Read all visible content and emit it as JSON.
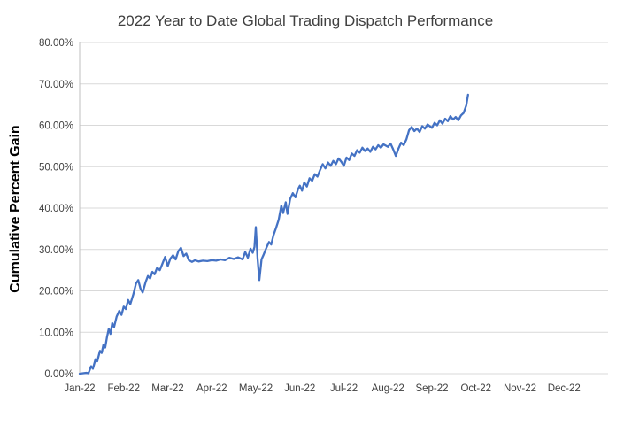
{
  "chart_data": {
    "type": "line",
    "title": "2022 Year to Date Global Trading Dispatch Performance",
    "xlabel": "",
    "ylabel": "Cumulative Percent Gain",
    "xlim": [
      0,
      12
    ],
    "ylim": [
      0,
      80
    ],
    "grid": "horizontal-only",
    "legend": "none",
    "x_tick_labels": [
      "Jan-22",
      "Feb-22",
      "Mar-22",
      "Apr-22",
      "May-22",
      "Jun-22",
      "Jul-22",
      "Aug-22",
      "Sep-22",
      "Oct-22",
      "Nov-22",
      "Dec-22"
    ],
    "y_ticks": [
      0,
      10,
      20,
      30,
      40,
      50,
      60,
      70,
      80
    ],
    "y_tick_labels": [
      "0.00%",
      "10.00%",
      "20.00%",
      "30.00%",
      "40.00%",
      "50.00%",
      "60.00%",
      "70.00%",
      "80.00%"
    ],
    "colors": {
      "line": "#4472C4",
      "grid": "#D9D9D9",
      "axis": "#BFBFBF",
      "title": "#404040",
      "tick": "#404040"
    },
    "series": [
      {
        "name": "Cumulative Percent Gain",
        "x_unit": "months-since-Jan-1-2022",
        "y_unit": "percent",
        "points": [
          [
            0.0,
            0.0
          ],
          [
            0.15,
            0.2
          ],
          [
            0.2,
            0.1
          ],
          [
            0.26,
            1.8
          ],
          [
            0.3,
            1.2
          ],
          [
            0.36,
            3.5
          ],
          [
            0.4,
            3.0
          ],
          [
            0.46,
            5.5
          ],
          [
            0.5,
            5.0
          ],
          [
            0.54,
            7.0
          ],
          [
            0.58,
            6.3
          ],
          [
            0.62,
            8.8
          ],
          [
            0.66,
            10.8
          ],
          [
            0.7,
            9.6
          ],
          [
            0.74,
            12.2
          ],
          [
            0.78,
            11.2
          ],
          [
            0.84,
            13.8
          ],
          [
            0.9,
            15.2
          ],
          [
            0.95,
            14.2
          ],
          [
            1.0,
            16.2
          ],
          [
            1.05,
            15.6
          ],
          [
            1.1,
            17.8
          ],
          [
            1.15,
            16.8
          ],
          [
            1.22,
            19.2
          ],
          [
            1.28,
            21.8
          ],
          [
            1.33,
            22.6
          ],
          [
            1.38,
            20.6
          ],
          [
            1.43,
            19.6
          ],
          [
            1.5,
            22.2
          ],
          [
            1.55,
            23.6
          ],
          [
            1.6,
            23.0
          ],
          [
            1.65,
            24.6
          ],
          [
            1.7,
            24.0
          ],
          [
            1.76,
            25.6
          ],
          [
            1.82,
            25.0
          ],
          [
            1.88,
            26.6
          ],
          [
            1.94,
            28.2
          ],
          [
            2.0,
            26.0
          ],
          [
            2.06,
            27.8
          ],
          [
            2.12,
            28.6
          ],
          [
            2.18,
            27.6
          ],
          [
            2.24,
            29.6
          ],
          [
            2.3,
            30.4
          ],
          [
            2.36,
            28.4
          ],
          [
            2.42,
            29.0
          ],
          [
            2.48,
            27.4
          ],
          [
            2.55,
            27.0
          ],
          [
            2.62,
            27.4
          ],
          [
            2.7,
            27.1
          ],
          [
            2.8,
            27.3
          ],
          [
            2.9,
            27.2
          ],
          [
            3.0,
            27.4
          ],
          [
            3.1,
            27.3
          ],
          [
            3.2,
            27.6
          ],
          [
            3.3,
            27.4
          ],
          [
            3.4,
            28.0
          ],
          [
            3.5,
            27.7
          ],
          [
            3.6,
            28.1
          ],
          [
            3.7,
            27.6
          ],
          [
            3.76,
            29.4
          ],
          [
            3.82,
            28.0
          ],
          [
            3.88,
            30.2
          ],
          [
            3.93,
            29.2
          ],
          [
            3.97,
            30.6
          ],
          [
            4.0,
            35.4
          ],
          [
            4.04,
            27.8
          ],
          [
            4.08,
            22.6
          ],
          [
            4.13,
            27.6
          ],
          [
            4.18,
            28.8
          ],
          [
            4.24,
            30.4
          ],
          [
            4.3,
            31.8
          ],
          [
            4.35,
            31.2
          ],
          [
            4.4,
            33.4
          ],
          [
            4.46,
            35.2
          ],
          [
            4.52,
            37.2
          ],
          [
            4.58,
            40.6
          ],
          [
            4.62,
            38.8
          ],
          [
            4.68,
            41.4
          ],
          [
            4.72,
            38.6
          ],
          [
            4.78,
            42.2
          ],
          [
            4.84,
            43.6
          ],
          [
            4.9,
            42.6
          ],
          [
            4.96,
            44.6
          ],
          [
            5.0,
            45.4
          ],
          [
            5.05,
            44.2
          ],
          [
            5.1,
            46.2
          ],
          [
            5.16,
            45.2
          ],
          [
            5.22,
            47.2
          ],
          [
            5.28,
            46.6
          ],
          [
            5.34,
            48.2
          ],
          [
            5.4,
            47.6
          ],
          [
            5.46,
            49.2
          ],
          [
            5.52,
            50.6
          ],
          [
            5.58,
            49.6
          ],
          [
            5.64,
            51.0
          ],
          [
            5.7,
            50.2
          ],
          [
            5.76,
            51.4
          ],
          [
            5.82,
            50.6
          ],
          [
            5.88,
            52.0
          ],
          [
            5.94,
            51.2
          ],
          [
            6.0,
            50.2
          ],
          [
            6.06,
            52.2
          ],
          [
            6.12,
            51.6
          ],
          [
            6.18,
            53.2
          ],
          [
            6.24,
            52.6
          ],
          [
            6.3,
            54.0
          ],
          [
            6.36,
            53.4
          ],
          [
            6.42,
            54.6
          ],
          [
            6.48,
            53.8
          ],
          [
            6.54,
            54.4
          ],
          [
            6.6,
            53.6
          ],
          [
            6.66,
            54.8
          ],
          [
            6.72,
            54.2
          ],
          [
            6.78,
            55.2
          ],
          [
            6.84,
            54.6
          ],
          [
            6.9,
            55.4
          ],
          [
            7.0,
            54.8
          ],
          [
            7.06,
            55.6
          ],
          [
            7.12,
            54.2
          ],
          [
            7.18,
            52.6
          ],
          [
            7.24,
            54.4
          ],
          [
            7.3,
            55.8
          ],
          [
            7.36,
            55.2
          ],
          [
            7.42,
            56.6
          ],
          [
            7.48,
            58.8
          ],
          [
            7.54,
            59.6
          ],
          [
            7.6,
            58.6
          ],
          [
            7.66,
            59.2
          ],
          [
            7.72,
            58.4
          ],
          [
            7.78,
            59.8
          ],
          [
            7.84,
            59.2
          ],
          [
            7.9,
            60.2
          ],
          [
            8.0,
            59.4
          ],
          [
            8.06,
            60.6
          ],
          [
            8.12,
            60.0
          ],
          [
            8.18,
            61.2
          ],
          [
            8.24,
            60.4
          ],
          [
            8.3,
            61.6
          ],
          [
            8.36,
            61.0
          ],
          [
            8.42,
            62.2
          ],
          [
            8.48,
            61.4
          ],
          [
            8.54,
            62.0
          ],
          [
            8.6,
            61.2
          ],
          [
            8.66,
            62.4
          ],
          [
            8.72,
            63.0
          ],
          [
            8.78,
            64.8
          ],
          [
            8.82,
            67.4
          ]
        ]
      }
    ]
  }
}
